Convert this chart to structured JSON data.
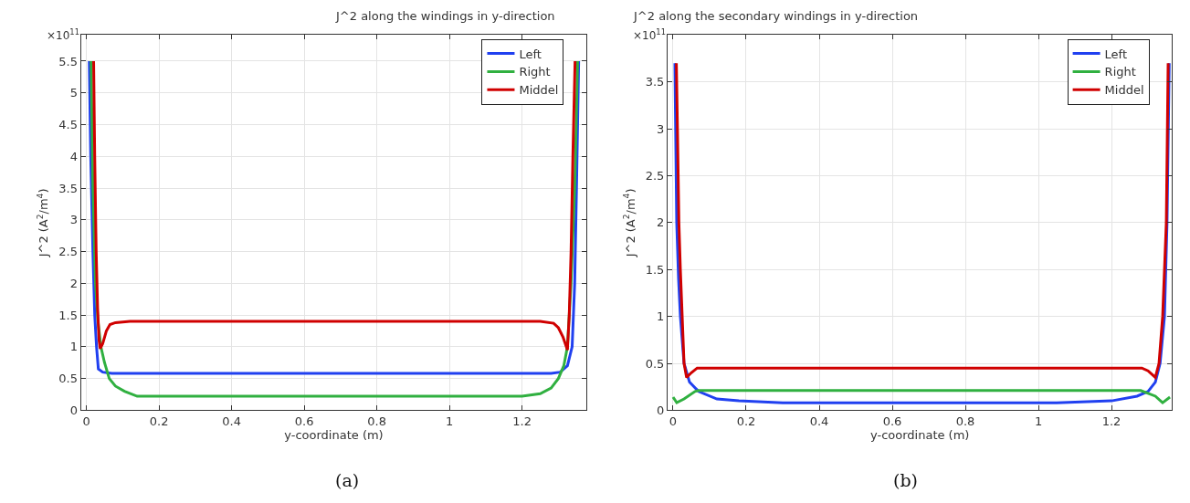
{
  "chart_data": [
    {
      "type": "line",
      "title": "J^2 along the windings in y-direction",
      "xlabel": "y-coordinate (m)",
      "ylabel": "J^2 (A$^{2}$/m$^{4}$)",
      "annotations": [
        "×10$^{11}$",
        "(a)"
      ],
      "xlim": [
        -0.015,
        1.378
      ],
      "xticks": [
        0,
        0.2,
        0.4,
        0.6,
        0.8,
        1,
        1.2
      ],
      "ylim": [
        0,
        5.91
      ],
      "yticks": [
        0,
        0.5,
        1,
        1.5,
        2,
        2.5,
        3,
        3.5,
        4,
        4.5,
        5,
        5.5
      ],
      "grid": true,
      "legend": "top right",
      "line_style": "solid",
      "marker": "none",
      "series": [
        {
          "name": "Left",
          "color": "#2040f0",
          "x": [
            0.008,
            0.012,
            0.018,
            0.023,
            0.028,
            0.033,
            0.045,
            0.07,
            0.6,
            1.28,
            1.305,
            1.325,
            1.338,
            1.345,
            1.35,
            1.356
          ],
          "values": [
            5.5,
            4.0,
            2.5,
            1.5,
            1.0,
            0.65,
            0.6,
            0.58,
            0.58,
            0.58,
            0.6,
            0.7,
            1.0,
            2.0,
            3.5,
            5.5
          ]
        },
        {
          "name": "Right",
          "color": "#30b040",
          "x": [
            0.013,
            0.018,
            0.025,
            0.032,
            0.04,
            0.05,
            0.063,
            0.08,
            0.105,
            0.14,
            0.6,
            1.2,
            1.25,
            1.28,
            1.3,
            1.315,
            1.325,
            1.335,
            1.345,
            1.353
          ],
          "values": [
            5.5,
            3.5,
            2.0,
            1.4,
            1.0,
            0.75,
            0.5,
            0.38,
            0.3,
            0.22,
            0.22,
            0.22,
            0.26,
            0.35,
            0.5,
            0.7,
            1.0,
            2.0,
            3.5,
            5.5
          ]
        },
        {
          "name": "Middel",
          "color": "#d00000",
          "x": [
            0.02,
            0.023,
            0.027,
            0.031,
            0.035,
            0.038,
            0.045,
            0.055,
            0.065,
            0.08,
            0.12,
            0.6,
            1.25,
            1.287,
            1.3,
            1.313,
            1.325,
            1.33,
            1.335,
            1.34,
            1.346
          ],
          "values": [
            5.5,
            4.0,
            2.5,
            1.6,
            1.1,
            0.97,
            1.05,
            1.25,
            1.35,
            1.38,
            1.4,
            1.4,
            1.4,
            1.37,
            1.3,
            1.15,
            0.95,
            1.5,
            2.5,
            4.0,
            5.5
          ]
        }
      ]
    },
    {
      "type": "line",
      "title": "J^2 along the secondary windings in y-direction",
      "xlabel": "y-coordinate (m)",
      "ylabel": "J^2 (A$^{2}$/m$^{4}$)",
      "annotations": [
        "×10$^{11}$",
        "(b)"
      ],
      "xlim": [
        -0.015,
        1.366
      ],
      "xticks": [
        0,
        0.2,
        0.4,
        0.6,
        0.8,
        1,
        1.2
      ],
      "ylim": [
        0,
        4.0
      ],
      "yticks": [
        0,
        0.5,
        1,
        1.5,
        2,
        2.5,
        3,
        3.5
      ],
      "grid": true,
      "legend": "top right",
      "line_style": "solid",
      "marker": "none",
      "series": [
        {
          "name": "Left",
          "color": "#2040f0",
          "x": [
            0.005,
            0.007,
            0.01,
            0.015,
            0.02,
            0.03,
            0.045,
            0.07,
            0.12,
            0.18,
            0.3,
            0.6,
            1.05,
            1.2,
            1.27,
            1.3,
            1.32,
            1.333,
            1.345,
            1.352,
            1.358
          ],
          "values": [
            3.7,
            3.0,
            2.0,
            1.4,
            1.0,
            0.5,
            0.3,
            0.2,
            0.12,
            0.1,
            0.08,
            0.08,
            0.08,
            0.1,
            0.15,
            0.2,
            0.3,
            0.5,
            1.0,
            2.0,
            3.7
          ]
        },
        {
          "name": "Right",
          "color": "#30b040",
          "x": [
            0,
            0.01,
            0.03,
            0.06,
            0.07,
            0.6,
            1.28,
            1.32,
            1.34,
            1.36
          ],
          "values": [
            0.14,
            0.08,
            0.12,
            0.2,
            0.21,
            0.21,
            0.21,
            0.15,
            0.08,
            0.14
          ]
        },
        {
          "name": "Middel",
          "color": "#d00000",
          "x": [
            0.009,
            0.012,
            0.016,
            0.02,
            0.025,
            0.03,
            0.037,
            0.05,
            0.066,
            0.6,
            1.283,
            1.3,
            1.32,
            1.33,
            1.34,
            1.345,
            1.35,
            1.355
          ],
          "values": [
            3.7,
            3.0,
            2.0,
            1.5,
            1.0,
            0.5,
            0.35,
            0.4,
            0.45,
            0.45,
            0.45,
            0.42,
            0.35,
            0.5,
            1.0,
            1.5,
            2.0,
            3.7
          ]
        }
      ]
    }
  ]
}
